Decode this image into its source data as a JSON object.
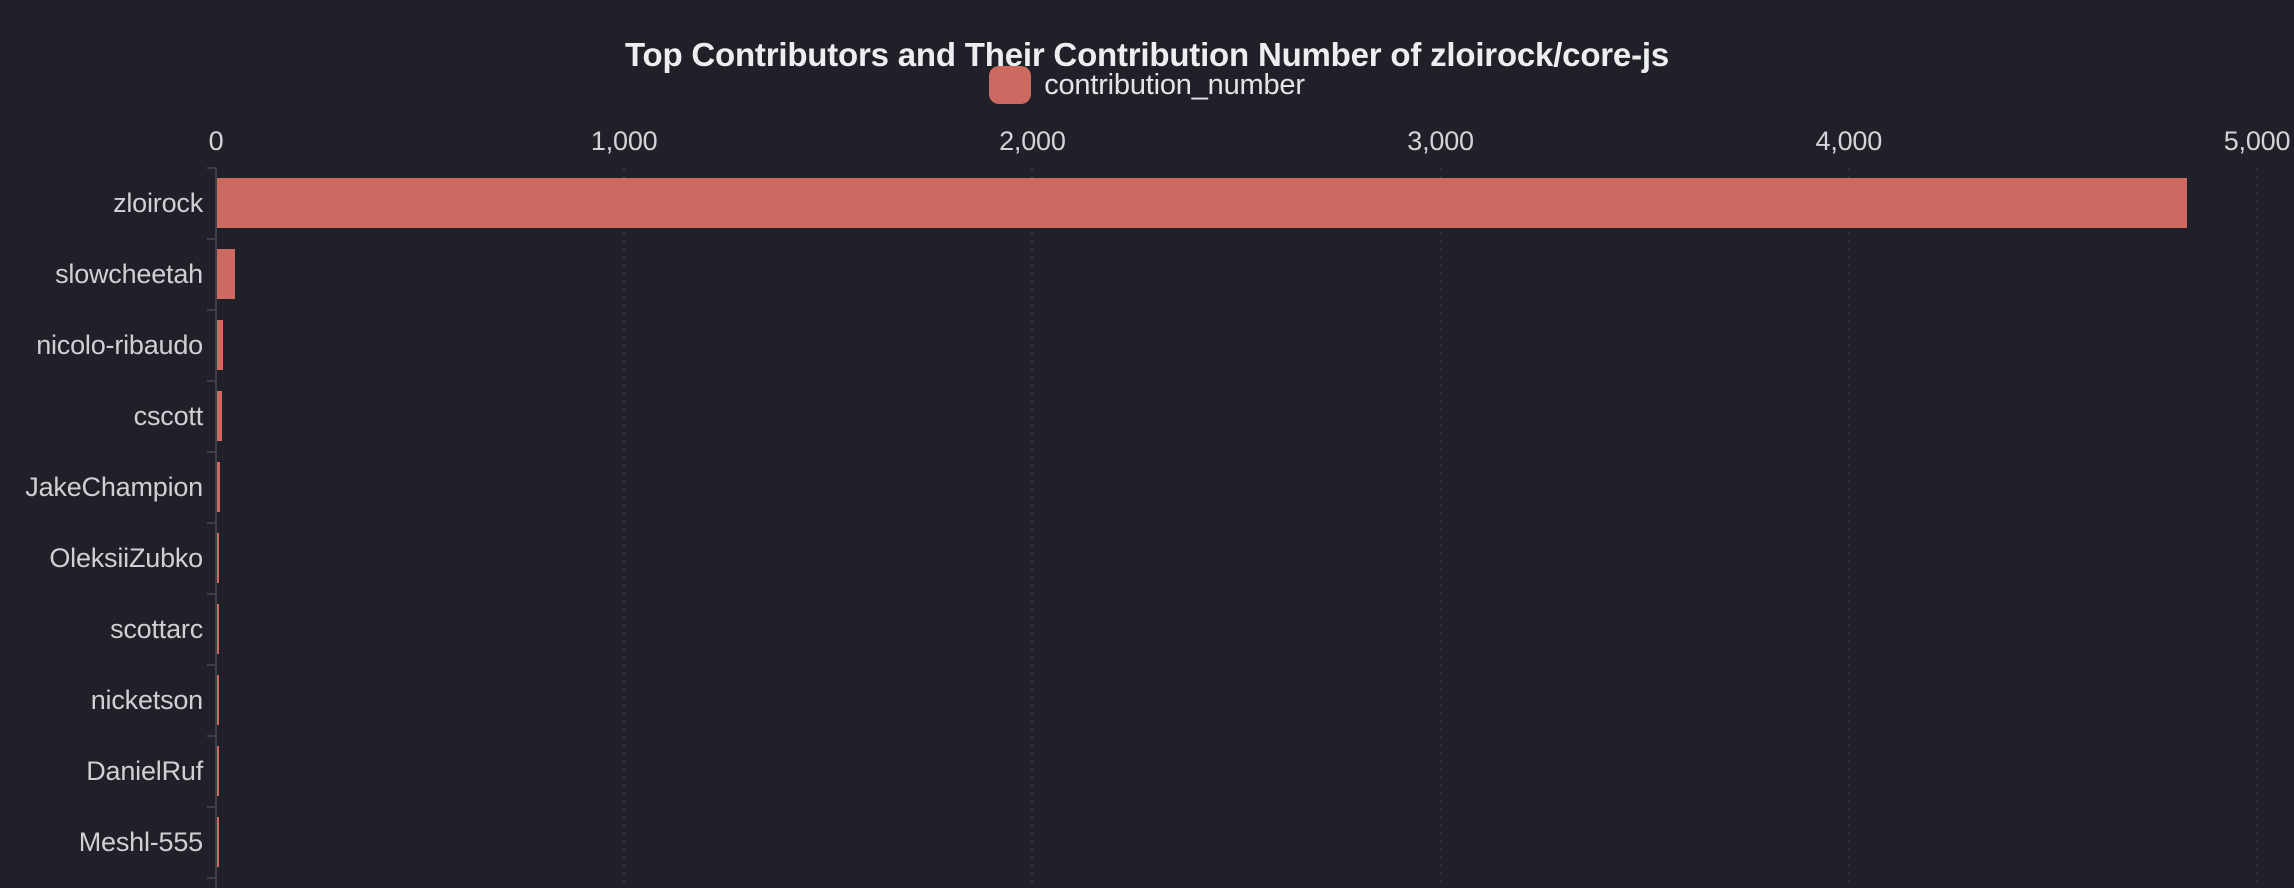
{
  "title": "Top Contributors and Their Contribution Number of zloirock/core-js",
  "legend": {
    "label": "contribution_number"
  },
  "chart_data": {
    "type": "bar",
    "orientation": "horizontal",
    "title": "Top Contributors and Their Contribution Number of zloirock/core-js",
    "series_name": "contribution_number",
    "categories": [
      "zloirock",
      "slowcheetah",
      "nicolo-ribaudo",
      "cscott",
      "JakeChampion",
      "OleksiiZubko",
      "scottarc",
      "nicketson",
      "DanielRuf",
      "Meshl-555"
    ],
    "values": [
      4826,
      45,
      15,
      13,
      7,
      5,
      5,
      5,
      4,
      4
    ],
    "xlabel": "",
    "ylabel": "",
    "xlim": [
      0,
      5000
    ],
    "x_tick_interval": 1000,
    "x_tick_labels": [
      "0",
      "1,000",
      "2,000",
      "3,000",
      "4,000",
      "5,000"
    ],
    "x_axis_position": "top",
    "grid": "vertical-dashed",
    "legend_position": "top-center"
  },
  "colors": {
    "background": "#202128",
    "bar": "#cc6960",
    "title_text": "#eceef0",
    "axis_label_text": "#d2d4d7",
    "category_label_text": "#ced0d3",
    "axis_line": "#3e3f46",
    "gridline": "#31323a"
  }
}
